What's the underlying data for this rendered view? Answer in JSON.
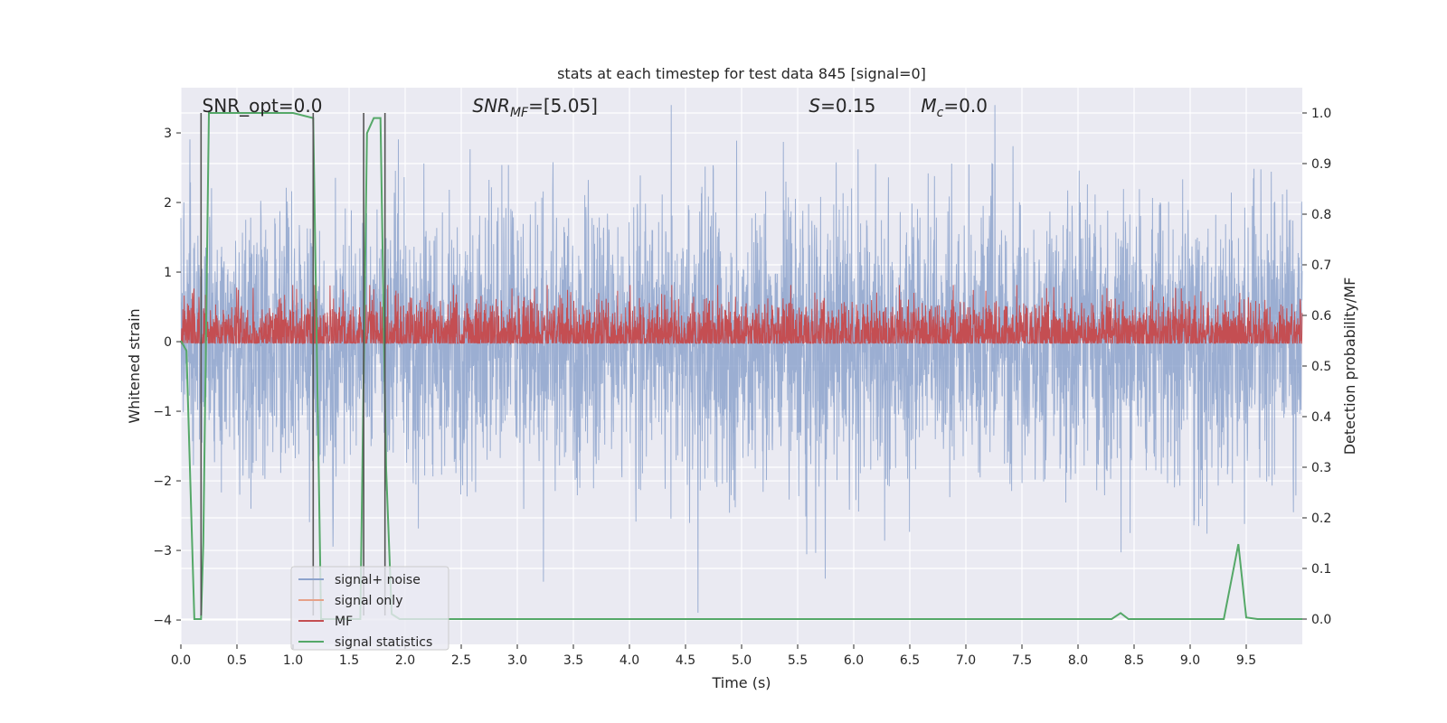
{
  "chart_data": {
    "type": "line",
    "title": "stats at each timestep for test data 845 [signal=0]",
    "xlabel": "Time (s)",
    "ylabel": "Whitened strain",
    "y2label": "Detection probability/MF",
    "xlim": [
      0.0,
      10.0
    ],
    "ylim": [
      -4.35,
      3.65
    ],
    "y2lim": [
      -0.05,
      1.05
    ],
    "x_ticks": [
      0.0,
      0.5,
      1.0,
      1.5,
      2.0,
      2.5,
      3.0,
      3.5,
      4.0,
      4.5,
      5.0,
      5.5,
      6.0,
      6.5,
      7.0,
      7.5,
      8.0,
      8.5,
      9.0,
      9.5
    ],
    "x_tick_labels": [
      "0.0",
      "0.5",
      "1.0",
      "1.5",
      "2.0",
      "2.5",
      "3.0",
      "3.5",
      "4.0",
      "4.5",
      "5.0",
      "5.5",
      "6.0",
      "6.5",
      "7.0",
      "7.5",
      "8.0",
      "8.5",
      "9.0",
      "9.5"
    ],
    "y_ticks": [
      -4,
      -3,
      -2,
      -1,
      0,
      1,
      2,
      3
    ],
    "y_tick_labels": [
      "−4",
      "−3",
      "−2",
      "−1",
      "0",
      "1",
      "2",
      "3"
    ],
    "y2_ticks": [
      0.0,
      0.1,
      0.2,
      0.3,
      0.4,
      0.5,
      0.6,
      0.7,
      0.8,
      0.9,
      1.0
    ],
    "y2_tick_labels": [
      "0.0",
      "0.1",
      "0.2",
      "0.3",
      "0.4",
      "0.5",
      "0.6",
      "0.7",
      "0.8",
      "0.9",
      "1.0"
    ],
    "grid": true,
    "legend_position": "lower-left",
    "annotations": [
      {
        "text": "SNR_opt=0.0",
        "x": 0.19
      },
      {
        "text": "SNR",
        "sub": "MF",
        "after": "=[5.05]",
        "italic": true,
        "x": 2.6
      },
      {
        "text": "S",
        "after": "=0.15",
        "italic": true,
        "x": 5.6
      },
      {
        "text": "M",
        "sub": "c",
        "after": "=0.0",
        "italic": true,
        "x": 6.6
      }
    ],
    "series": [
      {
        "name": "signal+ noise",
        "color": "#8da3cd",
        "noise": {
          "dt": 0.00244,
          "sigma": 0.95,
          "range": [
            -4.05,
            3.4
          ]
        }
      },
      {
        "name": "signal only",
        "color": "#e6a189",
        "values": []
      },
      {
        "name": "MF",
        "color": "#c44e52",
        "axis": "y2",
        "noise": {
          "dt": 0.00244,
          "center": 0.56,
          "spread": 0.035,
          "range": [
            0.545,
            0.66
          ]
        }
      },
      {
        "name": "signal statistics",
        "color": "#55a868",
        "axis": "y2",
        "x": [
          0.0,
          0.05,
          0.12,
          0.18,
          0.2,
          0.25,
          1.0,
          1.18,
          1.25,
          1.3,
          1.5,
          1.6,
          1.66,
          1.72,
          1.78,
          1.83,
          1.88,
          1.95,
          2.0,
          8.3,
          8.38,
          8.45,
          9.3,
          9.43,
          9.5,
          9.6,
          10.0
        ],
        "y": [
          0.55,
          0.53,
          0.0,
          0.0,
          0.15,
          1.0,
          1.0,
          0.99,
          0.0,
          0.0,
          0.0,
          0.0,
          0.96,
          0.99,
          0.99,
          0.3,
          0.01,
          0.0,
          0.0,
          0.0,
          0.012,
          0.0,
          0.0,
          0.148,
          0.003,
          0.0,
          0.0
        ]
      }
    ],
    "vertical_markers": {
      "color": "#555555",
      "x": [
        0.18,
        1.18,
        1.63,
        1.82
      ]
    }
  }
}
